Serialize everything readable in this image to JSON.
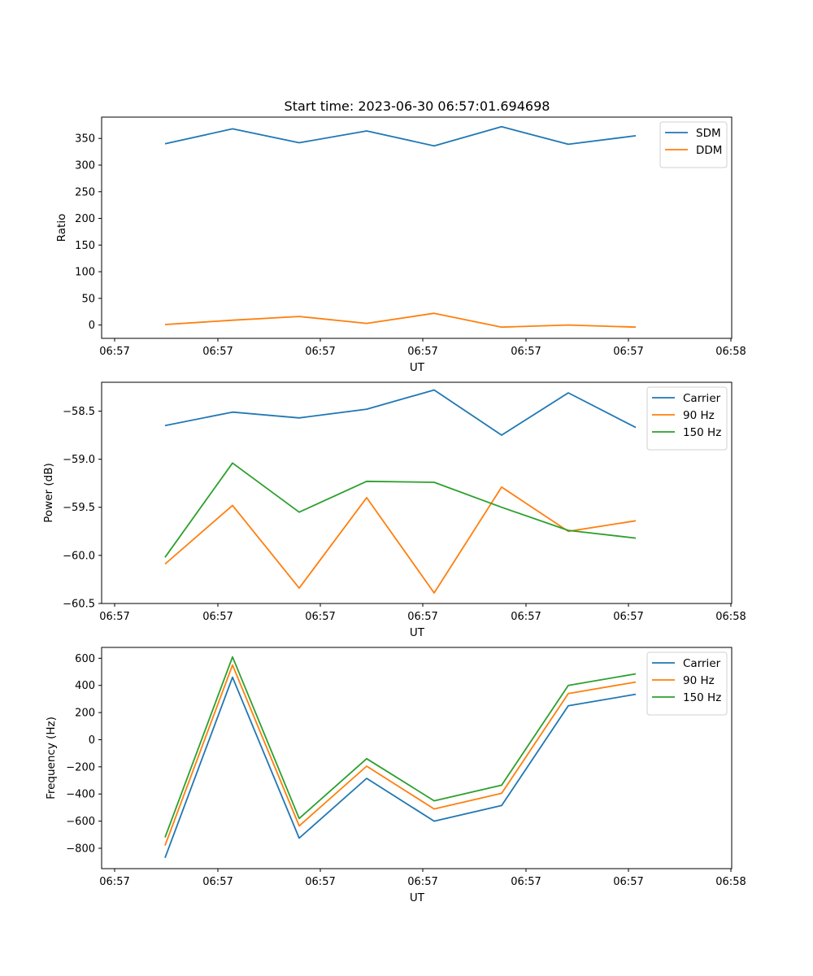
{
  "chart_data": [
    {
      "type": "line",
      "title": "Start time: 2023-06-30 06:57:01.694698",
      "xlabel": "UT",
      "ylabel": "Ratio",
      "x_tick_labels": [
        "06:57",
        "06:57",
        "06:57",
        "06:57",
        "06:57",
        "06:57",
        "06:58"
      ],
      "x": [
        1,
        2,
        3,
        4,
        5,
        6,
        7,
        8
      ],
      "ylim": [
        -25,
        390
      ],
      "y_ticks": [
        0,
        50,
        100,
        150,
        200,
        250,
        300,
        350
      ],
      "legend": "top-right",
      "series": [
        {
          "name": "SDM",
          "color": "#1f77b4",
          "values": [
            340,
            368,
            342,
            364,
            336,
            372,
            339,
            355
          ]
        },
        {
          "name": "DDM",
          "color": "#ff7f0e",
          "values": [
            1,
            9,
            16,
            3,
            22,
            -4,
            0,
            -4
          ]
        }
      ]
    },
    {
      "type": "line",
      "title": "",
      "xlabel": "UT",
      "ylabel": "Power (dB)",
      "x_tick_labels": [
        "06:57",
        "06:57",
        "06:57",
        "06:57",
        "06:57",
        "06:57",
        "06:58"
      ],
      "x": [
        1,
        2,
        3,
        4,
        5,
        6,
        7,
        8
      ],
      "ylim": [
        -60.5,
        -58.2
      ],
      "y_ticks": [
        -60.5,
        -60.0,
        -59.5,
        -59.0,
        -58.5
      ],
      "y_tick_labels": [
        "−60.5",
        "−60.0",
        "−59.5",
        "−59.0",
        "−58.5"
      ],
      "legend": "top-right",
      "series": [
        {
          "name": "Carrier",
          "color": "#1f77b4",
          "values": [
            -58.65,
            -58.51,
            -58.57,
            -58.48,
            -58.28,
            -58.75,
            -58.31,
            -58.67
          ]
        },
        {
          "name": "90 Hz",
          "color": "#ff7f0e",
          "values": [
            -60.09,
            -59.48,
            -60.34,
            -59.4,
            -60.39,
            -59.29,
            -59.75,
            -59.64
          ]
        },
        {
          "name": "150 Hz",
          "color": "#2ca02c",
          "values": [
            -60.02,
            -59.04,
            -59.55,
            -59.23,
            -59.24,
            -59.5,
            -59.74,
            -59.82
          ]
        }
      ]
    },
    {
      "type": "line",
      "title": "",
      "xlabel": "UT",
      "ylabel": "Frequency (Hz)",
      "x_tick_labels": [
        "06:57",
        "06:57",
        "06:57",
        "06:57",
        "06:57",
        "06:57",
        "06:58"
      ],
      "x": [
        1,
        2,
        3,
        4,
        5,
        6,
        7,
        8
      ],
      "ylim": [
        -950,
        680
      ],
      "y_ticks": [
        -800,
        -600,
        -400,
        -200,
        0,
        200,
        400,
        600
      ],
      "y_tick_labels": [
        "−800",
        "−600",
        "−400",
        "−200",
        "0",
        "200",
        "400",
        "600"
      ],
      "legend": "top-right",
      "series": [
        {
          "name": "Carrier",
          "color": "#1f77b4",
          "values": [
            -870,
            460,
            -725,
            -285,
            -600,
            -485,
            250,
            335
          ]
        },
        {
          "name": "90 Hz",
          "color": "#ff7f0e",
          "values": [
            -780,
            550,
            -635,
            -195,
            -510,
            -395,
            340,
            425
          ]
        },
        {
          "name": "150 Hz",
          "color": "#2ca02c",
          "values": [
            -720,
            610,
            -580,
            -140,
            -450,
            -335,
            400,
            485
          ]
        }
      ]
    }
  ]
}
